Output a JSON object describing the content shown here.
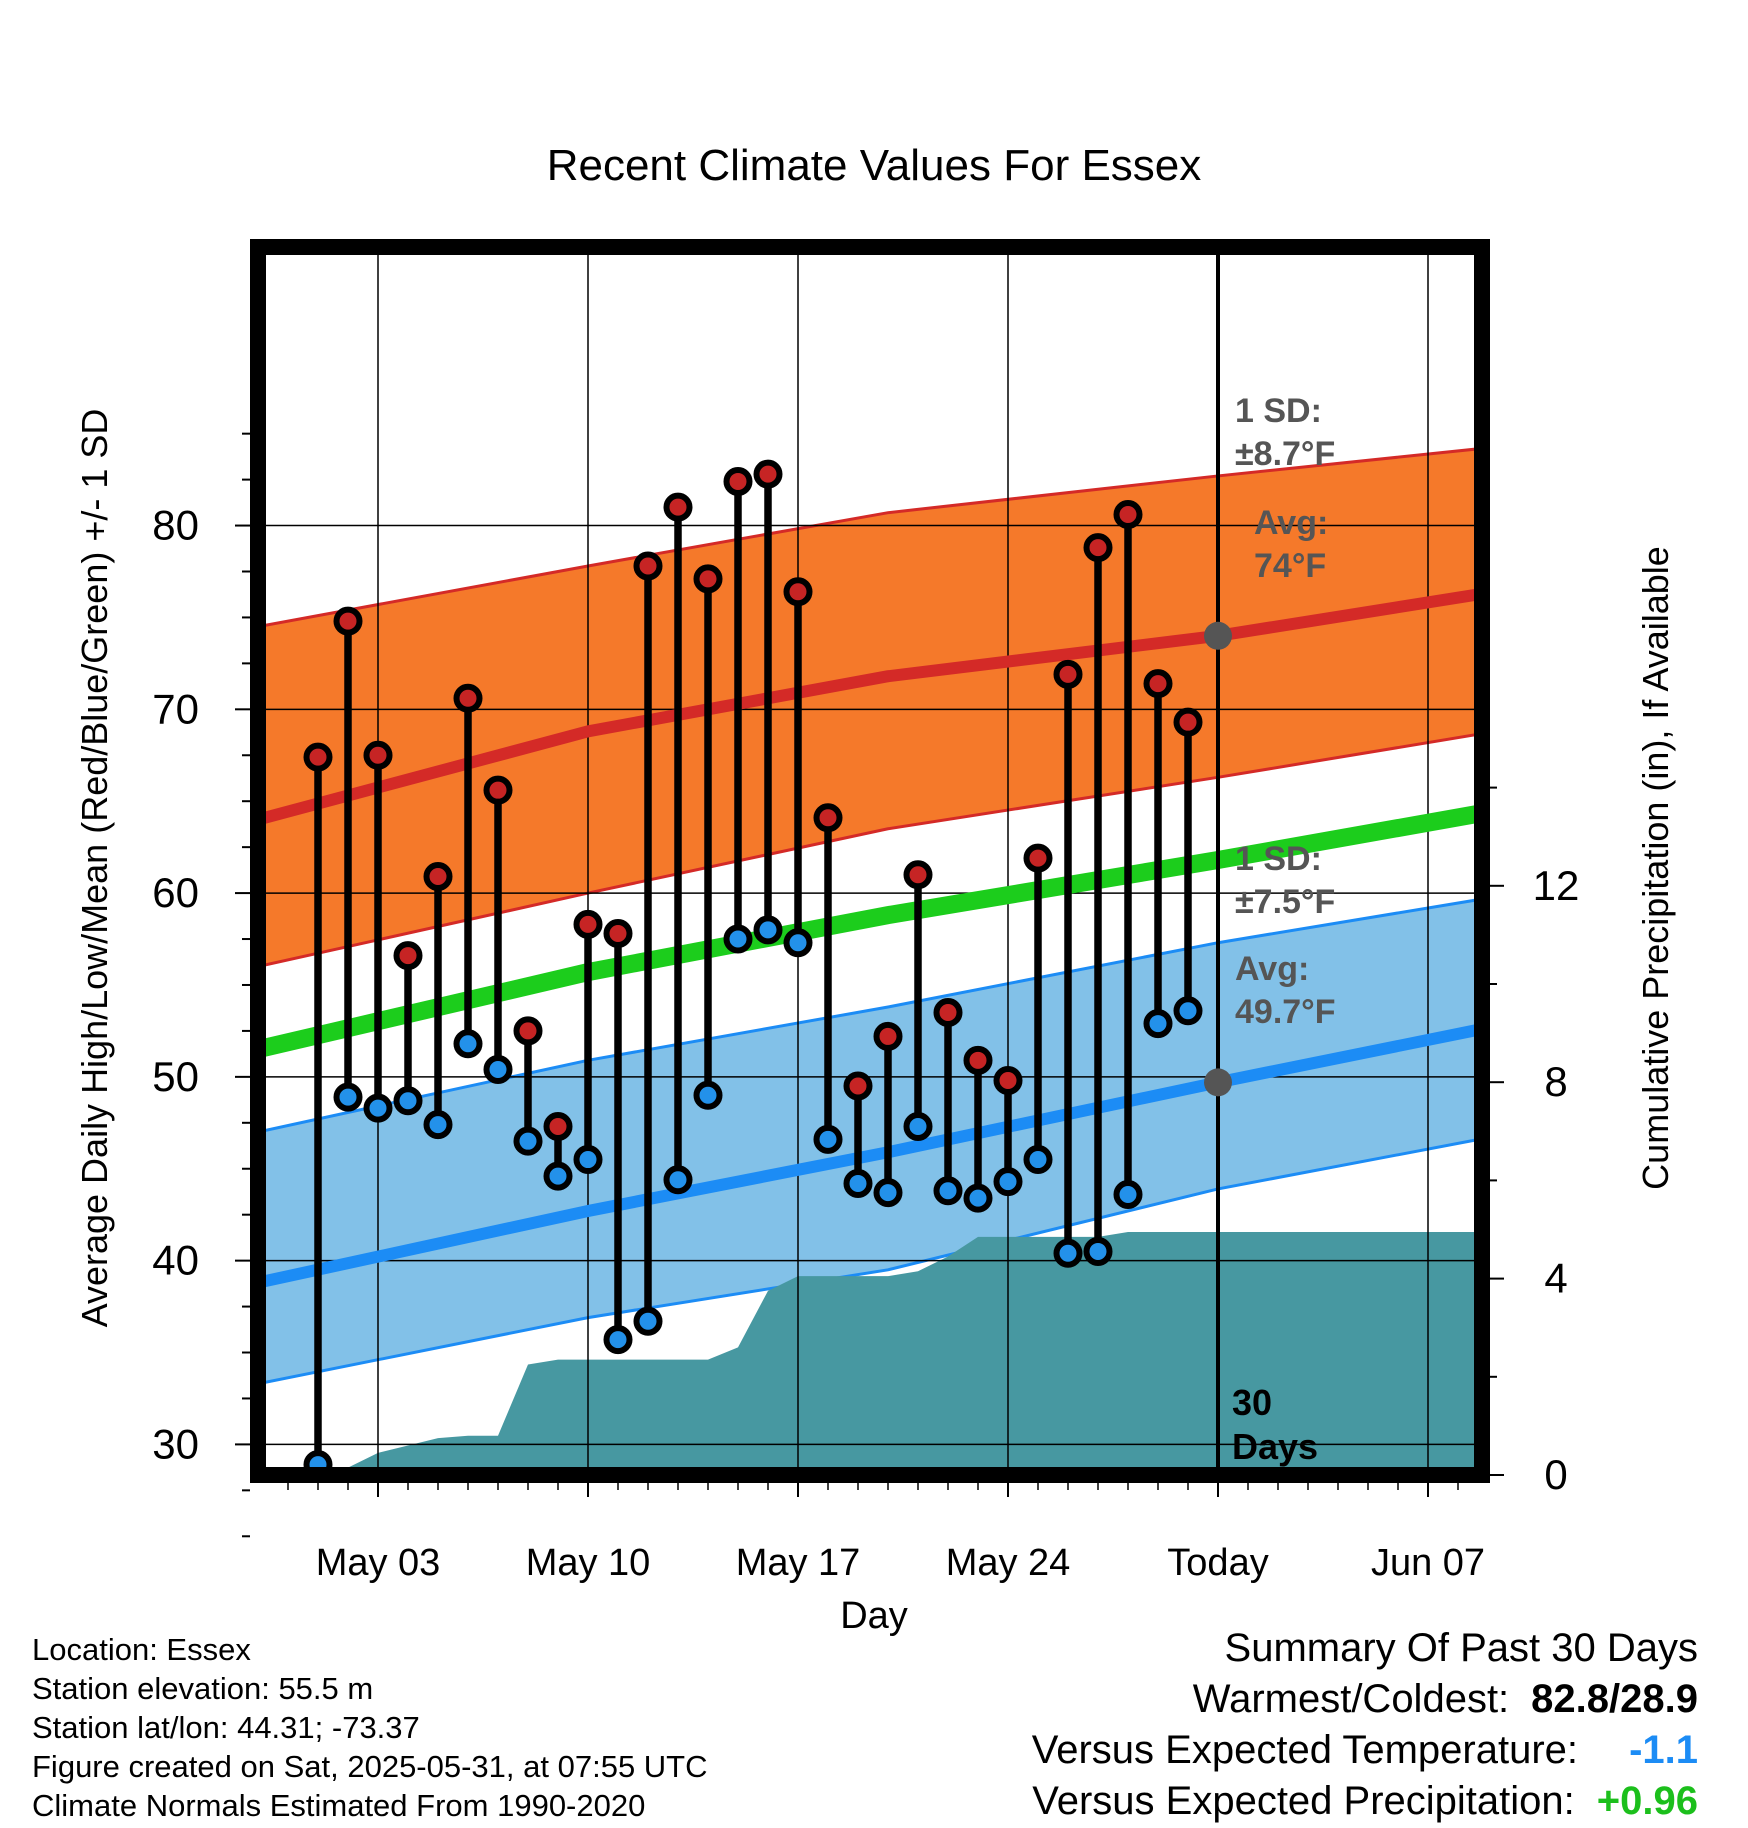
{
  "chart_data": {
    "type": "line",
    "title": "Recent Climate Values For Essex",
    "xlabel": "Day",
    "ylabel": "Average Daily High/Low/Mean (Red/Blue/Green) +/- 1 SD",
    "y2label": "Cumulative Precipitation (in), If Available",
    "x_ticks": [
      "May 03",
      "May 10",
      "May 17",
      "May 24",
      "Today",
      "Jun 07"
    ],
    "x_range": [
      "2025-04-29",
      "2025-06-10"
    ],
    "ylim": [
      21.5,
      87.5
    ],
    "y_ticks": [
      30,
      40,
      50,
      60,
      70,
      80
    ],
    "y2lim": [
      0,
      25
    ],
    "y2_ticks": [
      0,
      4,
      8,
      12
    ],
    "grid": true,
    "today": "2025-05-31",
    "today_label": "30 Days",
    "normals": {
      "dates": [
        "2025-04-29",
        "2025-05-10",
        "2025-05-20",
        "2025-05-31",
        "2025-06-10"
      ],
      "high_mean": [
        64.0,
        68.8,
        71.8,
        74.0,
        76.6
      ],
      "high_upper": [
        74.5,
        77.8,
        80.7,
        82.7,
        84.4
      ],
      "high_lower": [
        56.0,
        60.0,
        63.5,
        66.3,
        69.0
      ],
      "low_mean": [
        38.8,
        42.7,
        45.9,
        49.7,
        53.0
      ],
      "low_upper": [
        47.0,
        50.9,
        53.8,
        57.3,
        60.0
      ],
      "low_lower": [
        33.3,
        36.9,
        39.5,
        43.9,
        47.0
      ],
      "daily_mean": [
        51.5,
        55.7,
        58.8,
        61.8,
        64.7
      ]
    },
    "high_annotation": {
      "sd_label": "1 SD:",
      "sd_value": "±8.7°F",
      "avg_label": "Avg:",
      "avg_value": "74°F",
      "avg": 74.0
    },
    "low_annotation": {
      "sd_label": "1 SD:",
      "sd_value": "±7.5°F",
      "avg_label": "Avg:",
      "avg_value": "49.7°F",
      "avg": 49.7
    },
    "daily": {
      "dates": [
        "2025-05-01",
        "2025-05-02",
        "2025-05-03",
        "2025-05-04",
        "2025-05-05",
        "2025-05-06",
        "2025-05-07",
        "2025-05-08",
        "2025-05-09",
        "2025-05-10",
        "2025-05-11",
        "2025-05-12",
        "2025-05-13",
        "2025-05-14",
        "2025-05-15",
        "2025-05-16",
        "2025-05-17",
        "2025-05-18",
        "2025-05-19",
        "2025-05-20",
        "2025-05-21",
        "2025-05-22",
        "2025-05-23",
        "2025-05-24",
        "2025-05-25",
        "2025-05-26",
        "2025-05-27",
        "2025-05-28",
        "2025-05-29",
        "2025-05-30"
      ],
      "highs": [
        67.4,
        74.8,
        67.5,
        56.6,
        60.9,
        70.6,
        65.6,
        52.5,
        47.3,
        58.3,
        57.8,
        77.8,
        81.0,
        77.1,
        82.4,
        82.8,
        76.4,
        64.1,
        49.5,
        52.2,
        61.0,
        53.5,
        50.9,
        49.8,
        61.9,
        71.9,
        78.8,
        80.6,
        71.4,
        69.3
      ],
      "lows": [
        28.9,
        48.9,
        48.3,
        48.7,
        47.4,
        51.8,
        50.4,
        46.5,
        44.6,
        45.5,
        35.7,
        36.7,
        44.4,
        49.0,
        57.5,
        58.0,
        57.3,
        46.6,
        44.2,
        43.7,
        47.3,
        43.8,
        43.4,
        44.3,
        45.5,
        40.4,
        40.5,
        43.6,
        52.9,
        53.6
      ]
    },
    "precip": {
      "dates": [
        "2025-05-01",
        "2025-05-02",
        "2025-05-03",
        "2025-05-04",
        "2025-05-05",
        "2025-05-06",
        "2025-05-07",
        "2025-05-08",
        "2025-05-09",
        "2025-05-10",
        "2025-05-11",
        "2025-05-12",
        "2025-05-13",
        "2025-05-14",
        "2025-05-15",
        "2025-05-16",
        "2025-05-17",
        "2025-05-18",
        "2025-05-19",
        "2025-05-20",
        "2025-05-21",
        "2025-05-22",
        "2025-05-23",
        "2025-05-24",
        "2025-05-25",
        "2025-05-26",
        "2025-05-27",
        "2025-05-28",
        "2025-05-29",
        "2025-05-30",
        "2025-05-31",
        "2025-06-10"
      ],
      "cumulative": [
        0.0,
        0.15,
        0.45,
        0.6,
        0.75,
        0.8,
        0.8,
        2.25,
        2.35,
        2.35,
        2.35,
        2.35,
        2.35,
        2.35,
        2.6,
        3.75,
        4.05,
        4.05,
        4.05,
        4.05,
        4.15,
        4.45,
        4.85,
        4.85,
        4.85,
        4.85,
        4.85,
        4.95,
        4.95,
        4.95,
        4.95,
        4.95
      ]
    },
    "colors": {
      "high_band": "#f5792a",
      "high_line": "#d42a27",
      "low_band": "#82c1e8",
      "low_line": "#1c8cf5",
      "mean_line": "#1ccd1c",
      "precip": "#4798a1",
      "high_marker": "#c62424",
      "low_marker": "#2391ea",
      "annotation": "#555555"
    }
  },
  "station": {
    "location": "Location: Essex",
    "elevation": "Station elevation: 55.5 m",
    "latlon": "Station lat/lon: 44.31; -73.37",
    "created": "Figure created on Sat, 2025-05-31, at 07:55 UTC",
    "normals": "Climate Normals Estimated From 1990-2020"
  },
  "summary": {
    "title": "Summary Of Past 30 Days",
    "warm_cold_label": "Warmest/Coldest:",
    "warm_cold_value": "82.8/28.9",
    "temp_label": "Versus Expected Temperature:",
    "temp_value": "-1.1",
    "temp_color": "#1c8cf5",
    "precip_label": "Versus Expected Precipitation:",
    "precip_value": "+0.96",
    "precip_color": "#1cbf1c"
  }
}
